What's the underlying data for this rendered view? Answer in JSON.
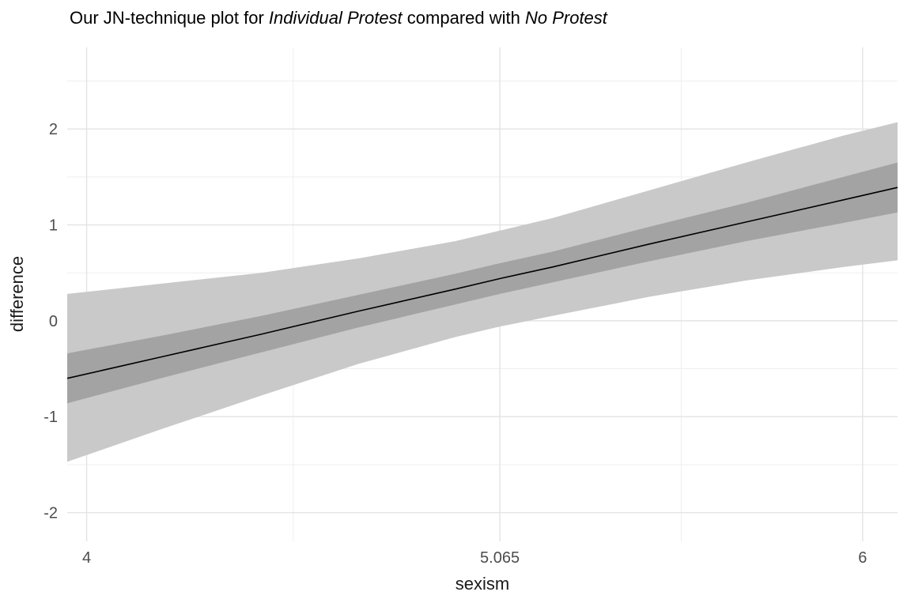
{
  "chart_data": {
    "type": "line",
    "title": "Our JN-technique plot for Individual Protest compared with No Protest",
    "title_parts": {
      "p1": "Our JN-technique plot for ",
      "i1": "Individual Protest",
      "p2": " compared with ",
      "i2": "No Protest"
    },
    "xlabel": "sexism",
    "ylabel": "difference",
    "xlim": [
      3.95,
      6.09
    ],
    "ylim": [
      -2.3,
      2.85
    ],
    "x_ticks": [
      {
        "value": 4,
        "label": "4"
      },
      {
        "value": 5.065,
        "label": "5.065"
      },
      {
        "value": 6,
        "label": "6"
      }
    ],
    "y_ticks": [
      {
        "value": -2,
        "label": "-2"
      },
      {
        "value": -1,
        "label": "-1"
      },
      {
        "value": 0,
        "label": "0"
      },
      {
        "value": 1,
        "label": "1"
      },
      {
        "value": 2,
        "label": "2"
      }
    ],
    "x_minor": [
      4.5325,
      5.5325
    ],
    "y_minor": [
      -1.5,
      -0.5,
      0.5,
      1.5,
      2.5
    ],
    "x": [
      3.95,
      4.2,
      4.45,
      4.7,
      4.95,
      5.065,
      5.2,
      5.45,
      5.7,
      5.95,
      6.09
    ],
    "line": [
      -0.6,
      -0.37,
      -0.14,
      0.1,
      0.33,
      0.44,
      0.56,
      0.8,
      1.03,
      1.26,
      1.39
    ],
    "inner_band": {
      "low": [
        -0.86,
        -0.59,
        -0.33,
        -0.07,
        0.17,
        0.28,
        0.4,
        0.62,
        0.83,
        1.02,
        1.13
      ],
      "high": [
        -0.34,
        -0.15,
        0.05,
        0.27,
        0.49,
        0.6,
        0.72,
        0.98,
        1.23,
        1.5,
        1.65
      ]
    },
    "outer_band": {
      "low": [
        -1.47,
        -1.12,
        -0.78,
        -0.45,
        -0.17,
        -0.06,
        0.05,
        0.25,
        0.42,
        0.56,
        0.63
      ],
      "high": [
        0.28,
        0.39,
        0.5,
        0.65,
        0.83,
        0.94,
        1.07,
        1.36,
        1.65,
        1.93,
        2.07
      ]
    },
    "colors": {
      "line": "#000000",
      "inner_band": "#a3a3a3",
      "outer_band": "#c9c9c9",
      "grid_major": "#e3e3e3",
      "grid_minor": "#efefef",
      "tick_text": "#4d4d4d",
      "axis_title_text": "#1a1a1a",
      "title_text": "#000000",
      "background": "#ffffff"
    },
    "legend": "none",
    "grid": "on"
  }
}
